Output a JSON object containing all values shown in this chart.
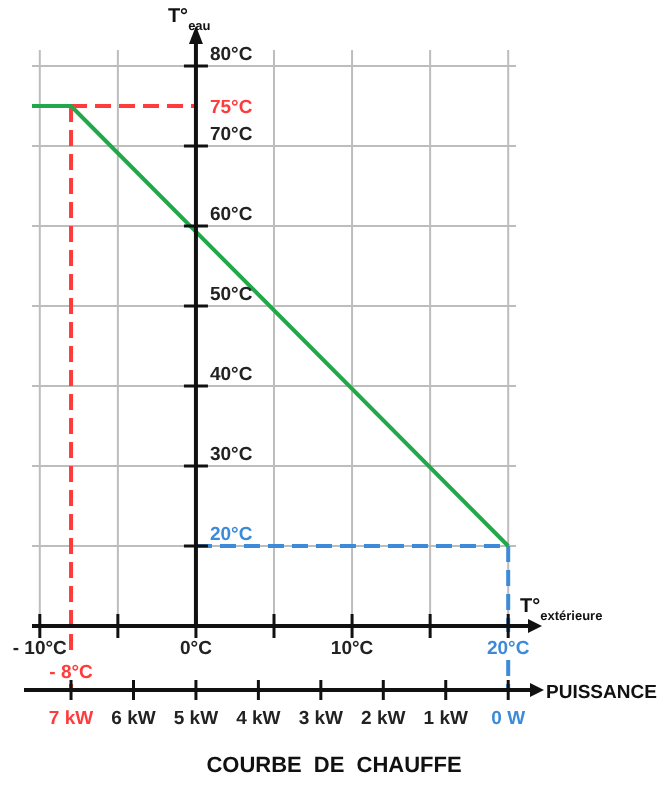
{
  "chart_data": {
    "type": "line",
    "title": "COURBE DE CHAUFFE",
    "xlabel": "T°$_{extérieure}$",
    "ylabel": "T°$_{eau}$",
    "x2label": "PUISSANCE",
    "xlim": [
      -10.5,
      20.5
    ],
    "ylim": [
      10,
      82
    ],
    "xticks": [
      {
        "value": -10,
        "label": "- 10°C"
      },
      {
        "value": -5,
        "label": null
      },
      {
        "value": 0,
        "label": "0°C"
      },
      {
        "value": 5,
        "label": null
      },
      {
        "value": 10,
        "label": "10°C"
      },
      {
        "value": 15,
        "label": null
      },
      {
        "value": 20,
        "label": null
      }
    ],
    "yticks": [
      {
        "value": 20,
        "label": null
      },
      {
        "value": 30,
        "label": "30°C"
      },
      {
        "value": 40,
        "label": "40°C"
      },
      {
        "value": 50,
        "label": "50°C"
      },
      {
        "value": 60,
        "label": "60°C"
      },
      {
        "value": 70,
        "label": "70°C"
      },
      {
        "value": 80,
        "label": "80°C"
      }
    ],
    "x2lim": [
      7.625,
      -0.125
    ],
    "x2ticks": [
      {
        "value": 7,
        "label": "7 kW"
      },
      {
        "value": 6,
        "label": "6 kW"
      },
      {
        "value": 5,
        "label": "5 kW"
      },
      {
        "value": 4,
        "label": "4 kW"
      },
      {
        "value": 3,
        "label": "3 kW"
      },
      {
        "value": 2,
        "label": "2 kW"
      },
      {
        "value": 1,
        "label": "1 kW"
      },
      {
        "value": 0,
        "label": "0 W"
      }
    ],
    "series": [
      {
        "color": "#22a84a",
        "x": [
          -10.5,
          -8,
          20
        ],
        "values": [
          75,
          75,
          20
        ]
      }
    ],
    "ref_lines": [
      {
        "axis": "x",
        "value": -8,
        "label": "- 8°C",
        "color": "#ff3b3b",
        "line_style": "dashed"
      },
      {
        "axis": "y",
        "value": 75,
        "label": "75°C",
        "color": "#ff3b3b",
        "line_style": "dashed"
      },
      {
        "axis": "y",
        "value": 20,
        "label": "20°C",
        "color": "#3d8bd8",
        "line_style": "dashed"
      },
      {
        "axis": "x",
        "value": 20,
        "label": "20°C",
        "color": "#3d8bd8",
        "line_style": "dashed"
      }
    ],
    "grid": true,
    "line_style": "solid"
  }
}
